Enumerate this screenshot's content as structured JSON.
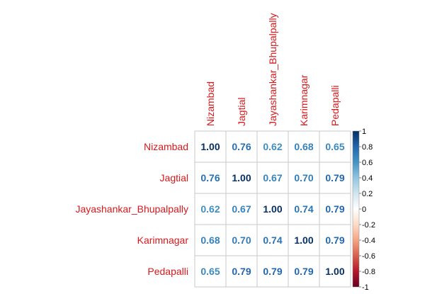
{
  "chart_data": {
    "type": "heatmap",
    "title": "",
    "labels": [
      "Nizambad",
      "Jagtial",
      "Jayashankar_Bhupalpally",
      "Karimnagar",
      "Pedapalli"
    ],
    "values": [
      [
        1.0,
        0.76,
        0.62,
        0.68,
        0.65
      ],
      [
        0.76,
        1.0,
        0.67,
        0.7,
        0.79
      ],
      [
        0.62,
        0.67,
        1.0,
        0.74,
        0.79
      ],
      [
        0.68,
        0.7,
        0.74,
        1.0,
        0.79
      ],
      [
        0.65,
        0.79,
        0.79,
        0.79,
        1.0
      ]
    ],
    "value_labels": [
      [
        "1.00",
        "0.76",
        "0.62",
        "0.68",
        "0.65"
      ],
      [
        "0.76",
        "1.00",
        "0.67",
        "0.70",
        "0.79"
      ],
      [
        "0.62",
        "0.67",
        "1.00",
        "0.74",
        "0.79"
      ],
      [
        "0.68",
        "0.70",
        "0.74",
        "1.00",
        "0.79"
      ],
      [
        "0.65",
        "0.79",
        "0.79",
        "0.79",
        "1.00"
      ]
    ],
    "color_scale": {
      "range": [
        -1,
        1
      ],
      "ticks": [
        "1",
        "0.8",
        "0.6",
        "0.4",
        "0.2",
        "0",
        "-0.2",
        "-0.4",
        "-0.6",
        "-0.8",
        "-1"
      ],
      "tick_values": [
        1,
        0.8,
        0.6,
        0.4,
        0.2,
        0,
        -0.2,
        -0.4,
        -0.6,
        -0.8,
        -1
      ],
      "colors": [
        "#67001F",
        "#B2182B",
        "#D6604D",
        "#F4A582",
        "#FDDBC7",
        "#FFFFFF",
        "#D1E5F0",
        "#92C5DE",
        "#4393C3",
        "#2166AC",
        "#053061"
      ]
    },
    "label_color": "#D7191C",
    "grid": true
  }
}
